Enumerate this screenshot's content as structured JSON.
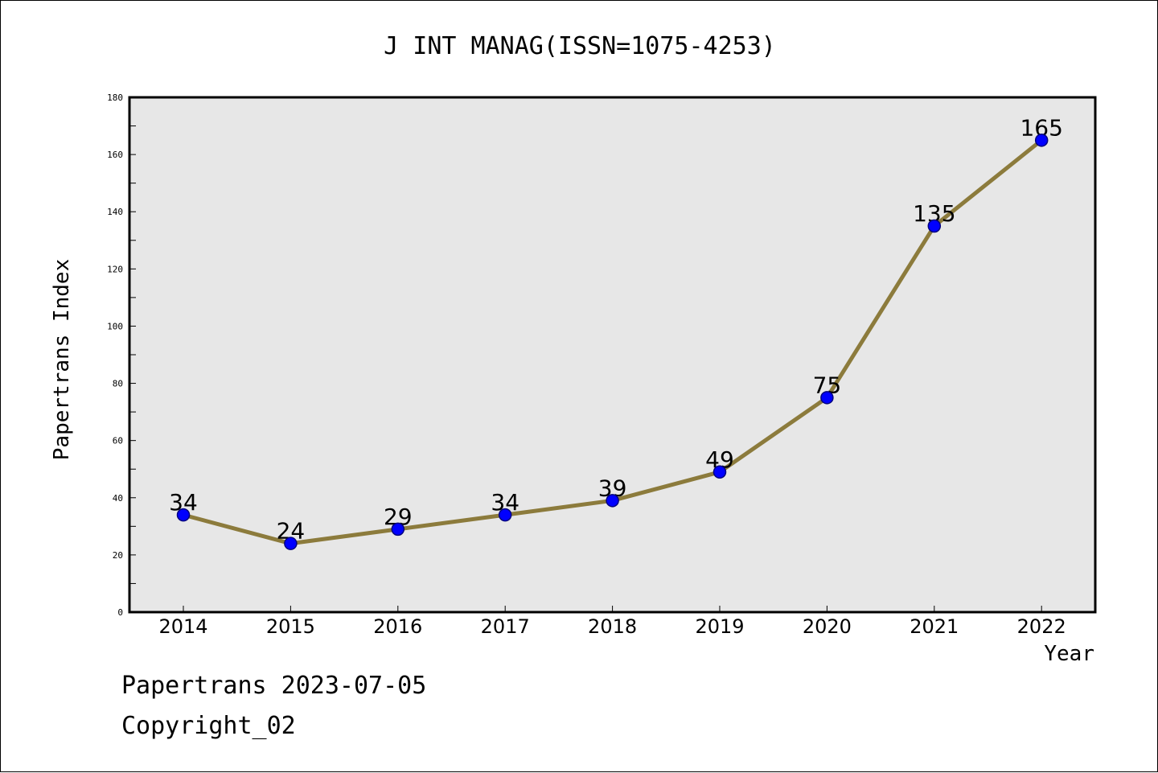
{
  "chart_data": {
    "type": "line",
    "title": "J INT MANAG(ISSN=1075-4253)",
    "xlabel": "Year",
    "ylabel": "Papertrans Index",
    "categories": [
      "2014",
      "2015",
      "2016",
      "2017",
      "2018",
      "2019",
      "2020",
      "2021",
      "2022"
    ],
    "series": [
      {
        "values": [
          34,
          24,
          29,
          34,
          39,
          49,
          75,
          135,
          165
        ]
      }
    ],
    "ylim": [
      0,
      180
    ],
    "yticks": [
      0,
      20,
      40,
      60,
      80,
      100,
      120,
      140,
      160,
      180
    ],
    "grid": false,
    "legend": "none",
    "colors": {
      "line": "#8c7b3c",
      "marker_fill": "#0000ff",
      "marker_edge": "#000080",
      "plot_background": "#e7e7e7"
    }
  },
  "footer": {
    "date_label": "Papertrans 2023-07-05",
    "copyright": "Copyright_02"
  }
}
